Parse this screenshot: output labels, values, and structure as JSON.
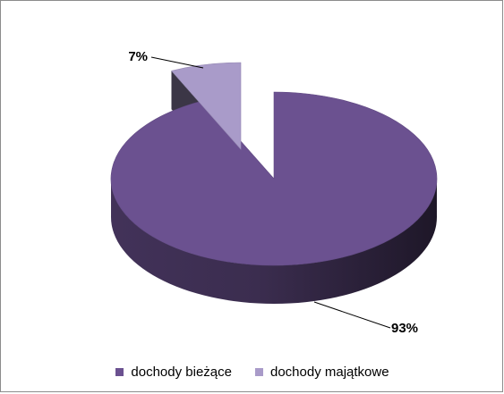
{
  "chart_data": {
    "type": "pie",
    "title": "",
    "legend_position": "bottom",
    "slices": [
      {
        "name": "dochody bieżące",
        "value": 93,
        "label": "93%",
        "color": "#6b5190"
      },
      {
        "name": "dochody majątkowe",
        "value": 7,
        "label": "7%",
        "color": "#a99bc9"
      }
    ]
  }
}
